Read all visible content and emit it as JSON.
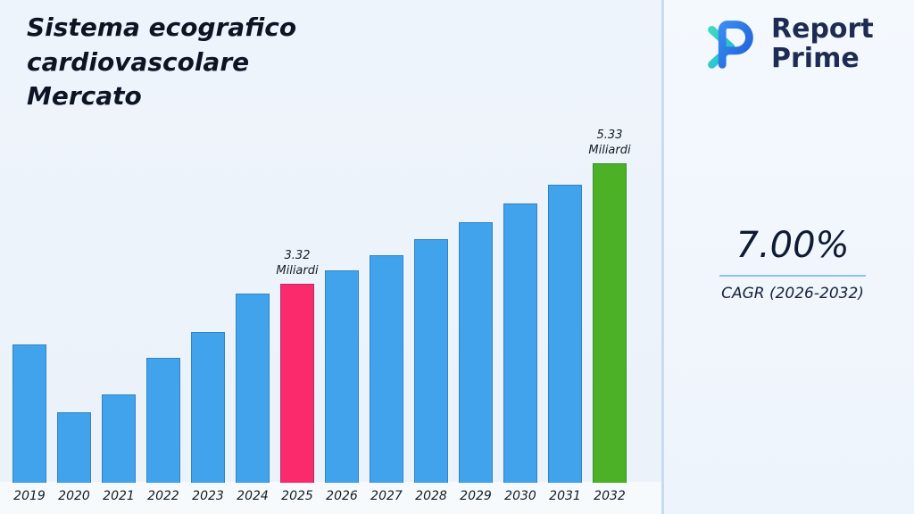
{
  "title": "Sistema ecografico\ncardiovascolare\nMercato",
  "logo": {
    "line1": "Report",
    "line2": "Prime",
    "icon": "report-prime-monogram",
    "brand_blue": "#2b6fe3",
    "brand_teal": "#2ed3ab",
    "text_color": "#1e2b52"
  },
  "cagr": {
    "value": "7.00%",
    "label": "CAGR (2026-2032)"
  },
  "chart_data": {
    "type": "bar",
    "title": "Sistema ecografico cardiovascolare Mercato",
    "unit": "Miliardi",
    "categories": [
      "2019",
      "2020",
      "2021",
      "2022",
      "2023",
      "2024",
      "2025",
      "2026",
      "2027",
      "2028",
      "2029",
      "2030",
      "2031",
      "2032"
    ],
    "values": [
      2.31,
      1.18,
      1.47,
      2.09,
      2.51,
      3.15,
      3.32,
      3.55,
      3.8,
      4.07,
      4.35,
      4.66,
      4.98,
      5.33
    ],
    "bar_colors": {
      "default": "#41a3ec",
      "2025": "#fb2a6c",
      "2032": "#4cb125"
    },
    "annotations": [
      {
        "category": "2025",
        "label": "3.32\nMiliardi"
      },
      {
        "category": "2032",
        "label": "5.33\nMiliardi"
      }
    ],
    "xlabel": "",
    "ylabel": "",
    "ylim": [
      0,
      5.6
    ],
    "grid": false,
    "legend": "none"
  }
}
